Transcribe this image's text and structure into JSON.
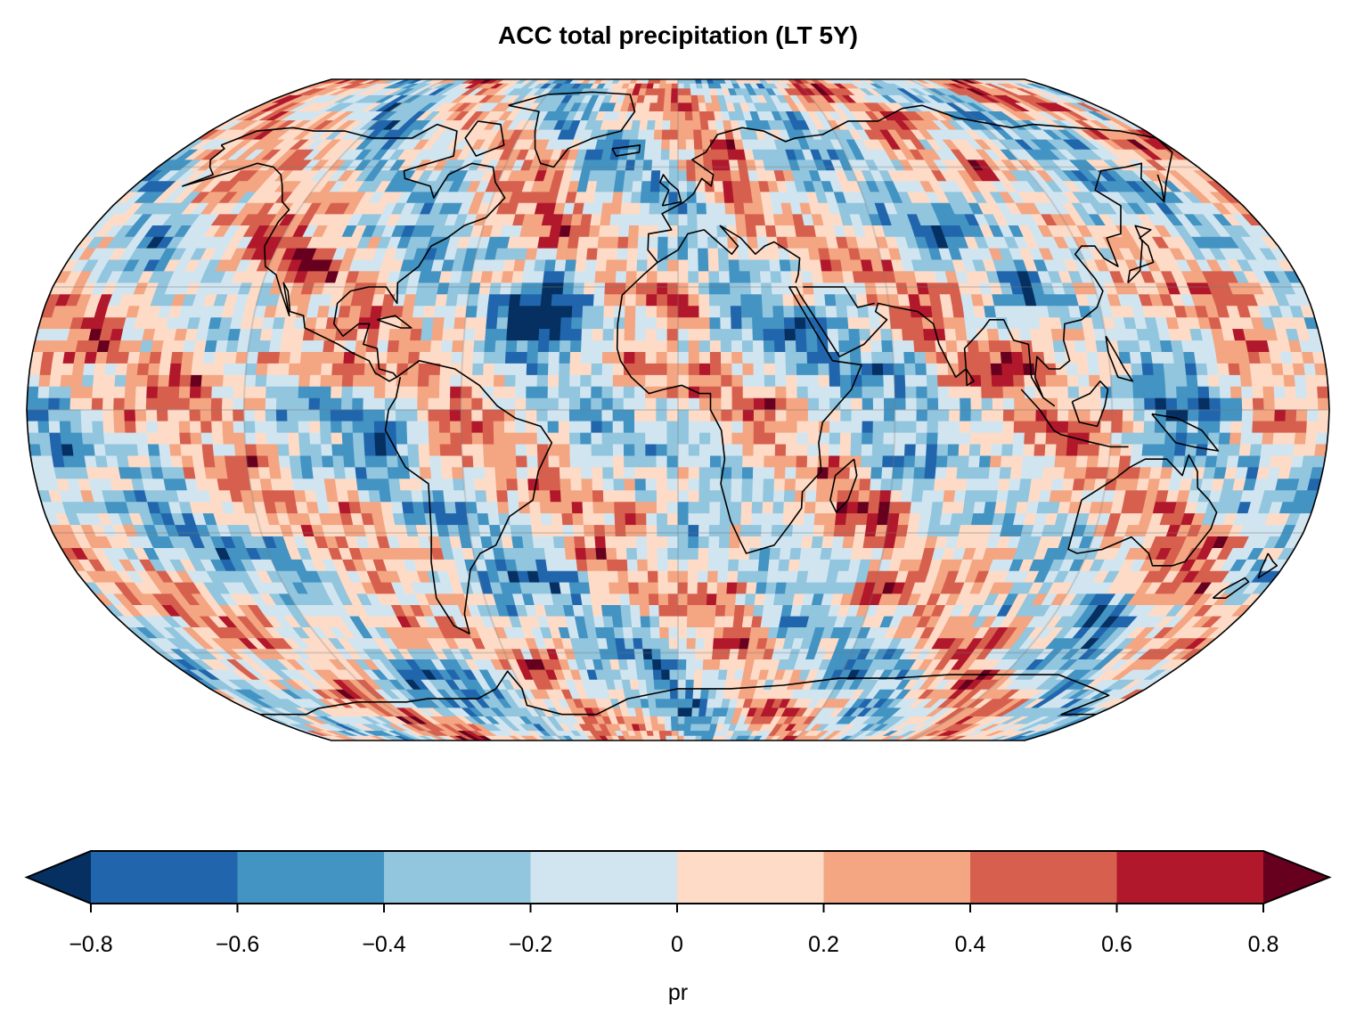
{
  "chart_data": {
    "type": "heatmap",
    "title": "ACC total precipitation (LT 5Y)",
    "projection": "Robinson (global map)",
    "variable": "pr",
    "colorbar": {
      "label": "pr",
      "boundaries": [
        -0.8,
        -0.6,
        -0.4,
        -0.2,
        0,
        0.2,
        0.4,
        0.6,
        0.8
      ],
      "tick_labels": [
        "−0.8",
        "−0.6",
        "−0.4",
        "−0.2",
        "0",
        "0.2",
        "0.4",
        "0.6",
        "0.8"
      ],
      "colors": [
        "#2166ac",
        "#4393c3",
        "#92c5de",
        "#d1e5f0",
        "#fddbc7",
        "#f4a582",
        "#d6604d",
        "#b2182b"
      ],
      "under_color": "#053061",
      "over_color": "#67001f",
      "extend": "both",
      "orientation": "horizontal",
      "placement": "bottom"
    },
    "value_range": [
      -0.8,
      0.8
    ],
    "field_description_values": {
      "north_atlantic_minimum": -0.8,
      "typical_range": [
        -0.6,
        0.6
      ]
    }
  }
}
